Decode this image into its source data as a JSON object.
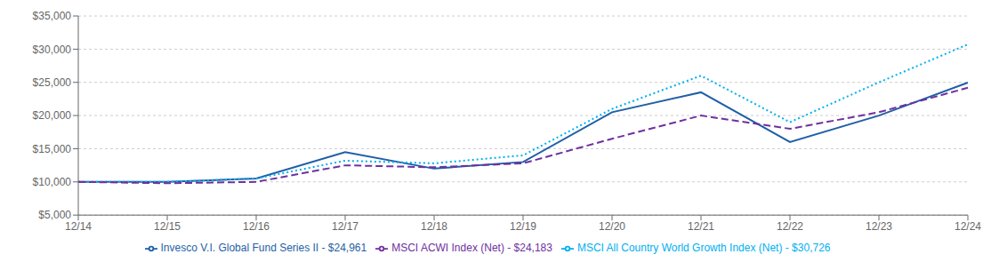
{
  "chart_data": {
    "type": "line",
    "categories": [
      "12/14",
      "12/15",
      "12/16",
      "12/17",
      "12/18",
      "12/19",
      "12/20",
      "12/21",
      "12/22",
      "12/23",
      "12/24"
    ],
    "series": [
      {
        "name": "Invesco V.I. Global Fund Series II - $24,961",
        "color": "#1f5fa6",
        "line_style": "solid",
        "values": [
          10000,
          10000,
          10500,
          14500,
          12000,
          13000,
          20500,
          23500,
          16000,
          20000,
          24961
        ]
      },
      {
        "name": "MSCI All Country World Growth Index (Net) - $30,726",
        "color": "#00b0f0",
        "line_style": "dotted",
        "values": [
          10000,
          10000,
          10500,
          13200,
          12800,
          14000,
          21000,
          26000,
          19000,
          25000,
          30726
        ]
      },
      {
        "name": "MSCI ACWI Index (Net) - $24,183",
        "color": "#7030a0",
        "line_style": "dashed",
        "values": [
          10000,
          9800,
          10000,
          12500,
          12200,
          12800,
          16500,
          20000,
          18000,
          20500,
          24183
        ]
      }
    ],
    "ylim": [
      5000,
      35000
    ],
    "yticks": [
      {
        "value": 5000,
        "label": "$5,000"
      },
      {
        "value": 10000,
        "label": "$10,000"
      },
      {
        "value": 15000,
        "label": "$15,000"
      },
      {
        "value": 20000,
        "label": "$20,000"
      },
      {
        "value": 25000,
        "label": "$25,000"
      },
      {
        "value": 30000,
        "label": "$30,000"
      },
      {
        "value": 35000,
        "label": "$35,000"
      }
    ],
    "grid": true,
    "legend": "bottom"
  }
}
